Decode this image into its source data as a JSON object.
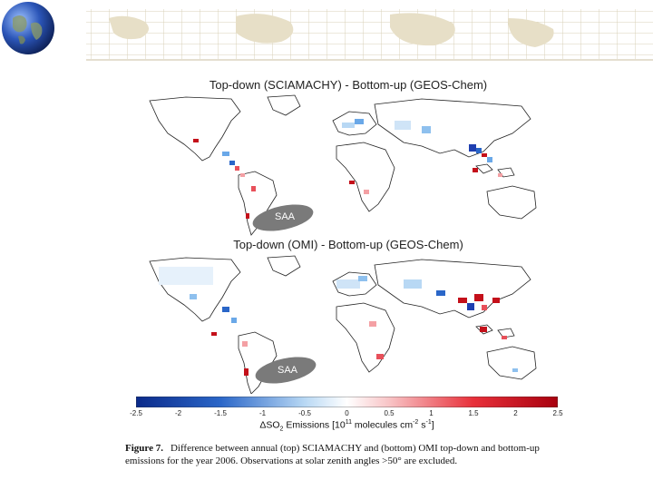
{
  "header": {
    "globe_icon": "globe-icon"
  },
  "panels": {
    "top": {
      "title": "Top-down (SCIAMACHY) - Bottom-up (GEOS-Chem)",
      "saa_label": "SAA"
    },
    "bottom": {
      "title": "Top-down (OMI) - Bottom-up (GEOS-Chem)",
      "saa_label": "SAA"
    }
  },
  "colorbar": {
    "ticks": [
      "-2.5",
      "-2",
      "-1.5",
      "-1",
      "-0.5",
      "0",
      "0.5",
      "1",
      "1.5",
      "2",
      "2.5"
    ],
    "label_delta": "ΔSO",
    "label_sub": "2",
    "label_mid": " Emissions [10",
    "label_sup1": "11",
    "label_mid2": " molecules cm",
    "label_sup2": "-2",
    "label_mid3": " s",
    "label_sup3": "-1",
    "label_end": "]",
    "colors": {
      "negative": "#1f3fb0",
      "zero": "#ffffff",
      "positive": "#c4101a"
    }
  },
  "caption": {
    "figure_label": "Figure 7.",
    "text": "Difference between annual (top) SCIAMACHY and (bottom) OMI top-down and bottom-up emissions for the year 2006. Observations at solar zenith angles >50° are excluded."
  }
}
